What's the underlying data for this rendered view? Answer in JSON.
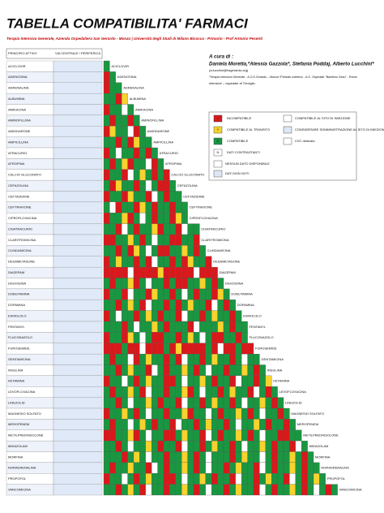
{
  "header": {
    "title": "TABELLA COMPATIBILITA' FARMACI",
    "subtitle": "Terapia Intensiva Generale, Azienda Ospedaliera San Gerardo - Monza | Università degli Studi di Milano Bicocca - Primario - Prof Antonio Pesenti"
  },
  "credits": {
    "label": "A cura di :",
    "authors": "Daniela Moretta,*Alessia Gazzola*, Stefania Poddaj, Alberto Lucchini*",
    "email": "(a.lucchini@hsgerardo.org)",
    "affiliation": "*Terapia Intensiva Generale - A.O.S.Gerardo – Monza *Presidio ostetrico - A.O. Ospedale \"Bambino Gesù\" - Roma",
    "note": "intensive – ospedale di Treviglio"
  },
  "legend": {
    "items": [
      {
        "code": "I",
        "label": "INCOMPATIBILE",
        "color": "#d7191c"
      },
      {
        "code": "Y",
        "label": "COMPATIBILE AL TRANSITO",
        "color": "#f6d32d"
      },
      {
        "code": "C",
        "label": "COMPATIBILE",
        "color": "#1a9641"
      },
      {
        "code": "N",
        "label": "DATI CONTRASTANTI",
        "color": "#ffffff"
      }
    ],
    "extra": [
      "NESSUN DATO DISPONIBILE",
      "DATI NON NOTI",
      "COMPATIBILE AL SITO DI INIEZIONE",
      "CONSIDERARE SOMMINISTRAZIONE AL SITO DI INIEZIONE",
      "CVC dedicato"
    ]
  },
  "table": {
    "header_name": "PRINCIPIO ATTIVO",
    "header_route": "VIA CENTRALE / PERIFERICA",
    "rows": [
      {
        "name": "ACICLOVIR",
        "cells": "C"
      },
      {
        "name": "ADENOSINA",
        "cells": "IC"
      },
      {
        "name": "ADRENALINA",
        "cells": "ICC"
      },
      {
        "name": "ALBUMINA",
        "cells": "CCIY"
      },
      {
        "name": "AMIKACINA",
        "cells": "ICCNC"
      },
      {
        "name": "AMINOFILLINA",
        "cells": "CICCIC"
      },
      {
        "name": "AMIODARONE",
        "cells": "IYCCNIC"
      },
      {
        "name": "AMPICILLINA",
        "cells": "CCICIYCC"
      },
      {
        "name": "ATRACURIO",
        "cells": "ICNCCICIC"
      },
      {
        "name": "ATROPINA",
        "cells": "CICYICCNIC"
      },
      {
        "name": "CALCIO GLUCONATO",
        "cells": "ICCINCYCICI"
      },
      {
        "name": "CEFAZOLINA",
        "cells": "CIYCCICNCIIC"
      },
      {
        "name": "CEFTAZIDIME",
        "cells": "ICCIYCCINCICC"
      },
      {
        "name": "CEFTRIAXONE",
        "cells": "CNICCIYCICCICC"
      },
      {
        "name": "CIPROFLOXACINA",
        "cells": "ICCYICNCICCIYC"
      },
      {
        "name": "CISATRACURIO",
        "cells": "CCINCICCYICCINCC"
      },
      {
        "name": "CLARITROMICINA",
        "cells": "IICCYCICNCCIICCI"
      },
      {
        "name": "CLINDAMICINA",
        "cells": "CCICIYCNCIICCYCIC"
      },
      {
        "name": "DESAMETASONE",
        "cells": "ICYCCICINCCICIYCCI"
      },
      {
        "name": "DIAZEPAM",
        "cells": "IIIINIIIIYIIIIINIII"
      },
      {
        "name": "DIGOSSINA",
        "cells": "CICCYICNCCICIICCYCIC"
      },
      {
        "name": "DOBUTAMINA",
        "cells": "ICCINCCIYCCICNCICCIYC"
      },
      {
        "name": "DOPAMINA",
        "cells": "CCICYCINCCICICYCCINCIC"
      },
      {
        "name": "ESMOLOLO",
        "cells": "ICNCCICYCICCINCCICYCCIC"
      },
      {
        "name": "FENTANYL",
        "cells": "CCCICNCCYCICCCINCCCYCICC"
      },
      {
        "name": "FLUCONAZOLO",
        "cells": "ICCIYCNCIICCICYCNCIICCIC"
      },
      {
        "name": "FUROSEMIDE",
        "cells": "IIICIINIIICIYIIIICINIICII"
      },
      {
        "name": "GENTAMICINA",
        "cells": "CICCNICYCCICINCCICYCCICNCC"
      },
      {
        "name": "INSULINA",
        "cells": "CCICYCCINCICCYCICNCCICCYCIC"
      },
      {
        "name": "KETAMINA",
        "cells": "ICCNCICYCCIICNCCYCICCINCCICY"
      },
      {
        "name": "LEVOFLOXACINA",
        "cells": "CICCYCINCCICCYICNCCICYCCINCIC"
      },
      {
        "name": "LINEZOLID",
        "cells": "CCICNCCYCICCINCCICYCCICNCCYCIC"
      },
      {
        "name": "MAGNESIO SOLFATO",
        "cells": "ICCYCICNCCICCYICCNCICCYCICNCCIC"
      },
      {
        "name": "MEROPENEM",
        "cells": "CICCNCYCICCINCCICYCCICNCCYCICCIC"
      },
      {
        "name": "METILPREDNISOLONE",
        "cells": "IICCYICNCCIICYCCINCICCYCICNCCIICC"
      },
      {
        "name": "MIDAZOLAM",
        "cells": "CCICNCCYCICCINCCICYCCICNCCYCICCINC"
      },
      {
        "name": "MORFINA",
        "cells": "CCCICYCNCCICCYCICNCCCICYCCNCICCYCIC"
      },
      {
        "name": "NORADRENALINA",
        "cells": "CICCYCCINCICCYCICNCCICYCCINCICCYCICC"
      },
      {
        "name": "PROPOFOL",
        "cells": "ICCNCICYCCIICNCCYCICCINCCICYCCINCICYC"
      },
      {
        "name": "VANCOMICINA",
        "cells": "CCICYCINCCICCYCICNCCICYCCINCICCYCICNCIC"
      }
    ]
  }
}
